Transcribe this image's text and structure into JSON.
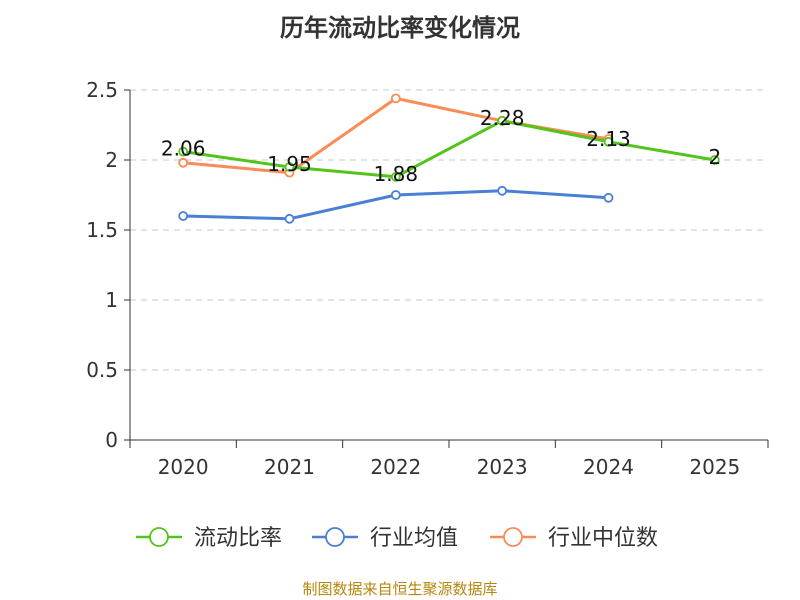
{
  "chart_data": {
    "type": "line",
    "title": "历年流动比率变化情况",
    "categories": [
      "2020",
      "2021",
      "2022",
      "2023",
      "2024",
      "2025"
    ],
    "y_ticks": [
      "0",
      "0.5",
      "1",
      "1.5",
      "2",
      "2.5"
    ],
    "ylim": [
      0,
      2.5
    ],
    "grid": true,
    "legend_position": "bottom",
    "series": [
      {
        "name": "流动比率",
        "color": "#52c41a",
        "values": [
          2.06,
          1.95,
          1.88,
          2.28,
          2.13,
          2.0
        ],
        "labels": [
          "2.06",
          "1.95",
          "1.88",
          "2.28",
          "2.13",
          "2"
        ]
      },
      {
        "name": "行业均值",
        "color": "#4a7fd6",
        "values": [
          1.6,
          1.58,
          1.75,
          1.78,
          1.73,
          null
        ]
      },
      {
        "name": "行业中位数",
        "color": "#fa8c56",
        "values": [
          1.98,
          1.91,
          2.44,
          2.28,
          2.15,
          null
        ]
      }
    ]
  },
  "source": "制图数据来自恒生聚源数据库"
}
